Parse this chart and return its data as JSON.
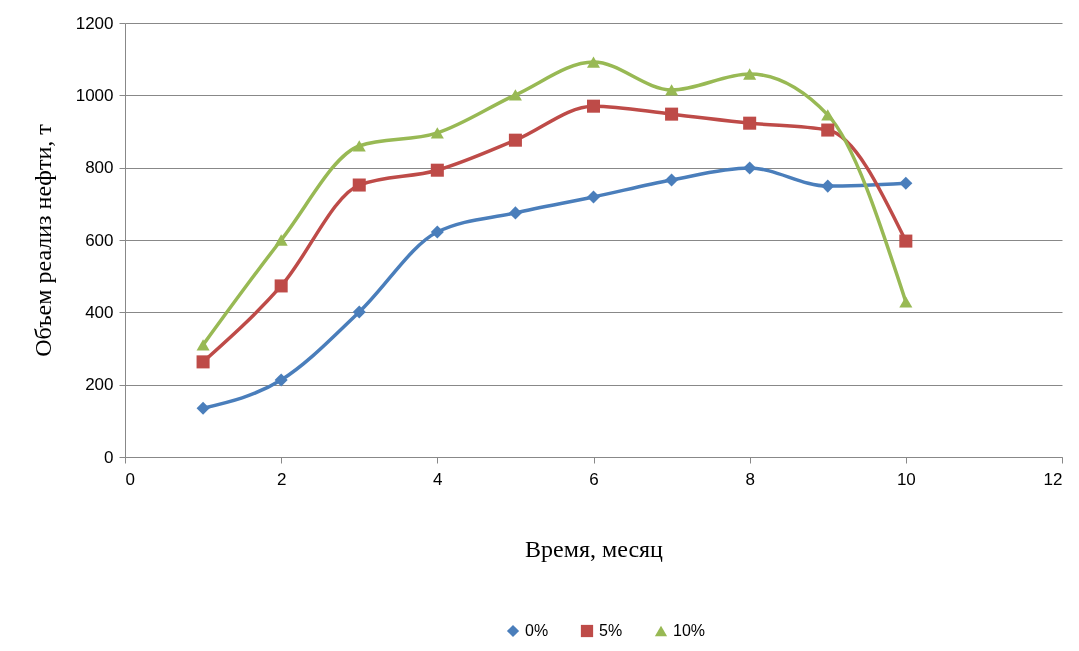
{
  "chart_data": {
    "type": "line",
    "xlabel": "Время, месяц",
    "ylabel": "Объем реализ нефти, т",
    "x": [
      1,
      2,
      3,
      4,
      5,
      6,
      7,
      8,
      9,
      10
    ],
    "series": [
      {
        "name": "0%",
        "color": "#4a7ebb",
        "marker": "diamond",
        "values": [
          135,
          213,
          401,
          622,
          675,
          719,
          766,
          799,
          749,
          757
        ]
      },
      {
        "name": "5%",
        "color": "#be4b48",
        "marker": "square",
        "values": [
          263,
          473,
          752,
          793,
          876,
          970,
          948,
          923,
          904,
          597
        ]
      },
      {
        "name": "10%",
        "color": "#98b954",
        "marker": "triangle",
        "values": [
          310,
          600,
          860,
          896,
          1001,
          1092,
          1015,
          1059,
          946,
          429
        ]
      }
    ],
    "xlim": [
      0,
      12
    ],
    "xticks": [
      0,
      2,
      4,
      6,
      8,
      10,
      12
    ],
    "ylim": [
      0,
      1200
    ],
    "yticks": [
      0,
      200,
      400,
      600,
      800,
      1000,
      1200
    ],
    "grid": "y",
    "legend": "bottom",
    "line_style": "solid"
  }
}
